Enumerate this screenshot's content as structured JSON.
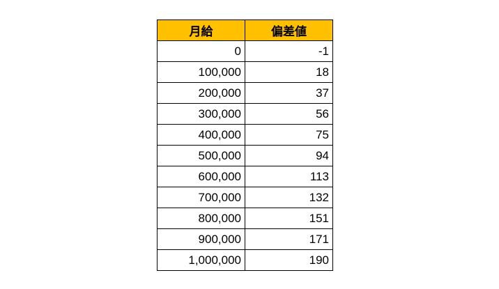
{
  "table": {
    "header_color": "#FFC000",
    "headers": [
      "月給",
      "偏差値"
    ],
    "rows": [
      [
        "0",
        "-1"
      ],
      [
        "100,000",
        "18"
      ],
      [
        "200,000",
        "37"
      ],
      [
        "300,000",
        "56"
      ],
      [
        "400,000",
        "75"
      ],
      [
        "500,000",
        "94"
      ],
      [
        "600,000",
        "113"
      ],
      [
        "700,000",
        "132"
      ],
      [
        "800,000",
        "151"
      ],
      [
        "900,000",
        "171"
      ],
      [
        "1,000,000",
        "190"
      ]
    ]
  }
}
